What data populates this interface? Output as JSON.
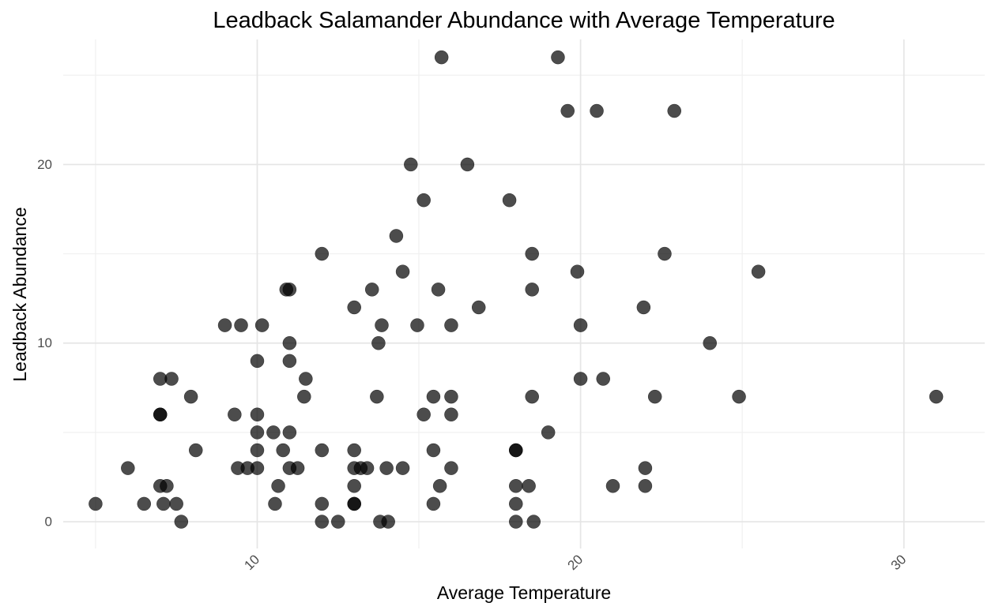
{
  "chart_data": {
    "type": "scatter",
    "title": "Leadback Salamander Abundance with Average Temperature",
    "xlabel": "Average Temperature",
    "ylabel": "Leadback Abundance",
    "xlim": [
      4,
      32.5
    ],
    "ylim": [
      -1.5,
      27
    ],
    "x_ticks": [
      10,
      20,
      30
    ],
    "x_tick_labels": [
      "10",
      "20",
      "30"
    ],
    "x_minor_ticks": [
      5,
      15,
      25
    ],
    "y_ticks": [
      0,
      10,
      20
    ],
    "y_tick_labels": [
      "0",
      "10",
      "20"
    ],
    "y_minor_ticks": [
      5,
      15,
      25
    ],
    "grid": true,
    "legend": "none",
    "point_color": "#000000",
    "point_opacity": 0.7,
    "points": [
      {
        "x": 5.0,
        "y": 1
      },
      {
        "x": 6.0,
        "y": 3
      },
      {
        "x": 6.5,
        "y": 1
      },
      {
        "x": 7.0,
        "y": 6
      },
      {
        "x": 7.0,
        "y": 6
      },
      {
        "x": 7.0,
        "y": 8
      },
      {
        "x": 7.0,
        "y": 2
      },
      {
        "x": 7.1,
        "y": 1
      },
      {
        "x": 7.2,
        "y": 2
      },
      {
        "x": 7.35,
        "y": 8
      },
      {
        "x": 7.5,
        "y": 1
      },
      {
        "x": 7.65,
        "y": 0
      },
      {
        "x": 7.95,
        "y": 7
      },
      {
        "x": 8.1,
        "y": 4
      },
      {
        "x": 9.0,
        "y": 11
      },
      {
        "x": 9.3,
        "y": 6
      },
      {
        "x": 9.4,
        "y": 3
      },
      {
        "x": 9.5,
        "y": 11
      },
      {
        "x": 9.7,
        "y": 3
      },
      {
        "x": 10.0,
        "y": 9
      },
      {
        "x": 10.0,
        "y": 6
      },
      {
        "x": 10.0,
        "y": 5
      },
      {
        "x": 10.0,
        "y": 4
      },
      {
        "x": 10.0,
        "y": 3
      },
      {
        "x": 10.15,
        "y": 11
      },
      {
        "x": 10.5,
        "y": 5
      },
      {
        "x": 10.55,
        "y": 1
      },
      {
        "x": 10.65,
        "y": 2
      },
      {
        "x": 10.8,
        "y": 4
      },
      {
        "x": 10.9,
        "y": 13
      },
      {
        "x": 11.0,
        "y": 13
      },
      {
        "x": 11.0,
        "y": 10
      },
      {
        "x": 11.0,
        "y": 9
      },
      {
        "x": 11.0,
        "y": 5
      },
      {
        "x": 11.0,
        "y": 3
      },
      {
        "x": 11.25,
        "y": 3
      },
      {
        "x": 11.45,
        "y": 7
      },
      {
        "x": 11.5,
        "y": 8
      },
      {
        "x": 12.0,
        "y": 15
      },
      {
        "x": 12.0,
        "y": 4
      },
      {
        "x": 12.0,
        "y": 1
      },
      {
        "x": 12.0,
        "y": 0
      },
      {
        "x": 12.5,
        "y": 0
      },
      {
        "x": 13.0,
        "y": 12
      },
      {
        "x": 13.0,
        "y": 4
      },
      {
        "x": 13.0,
        "y": 3
      },
      {
        "x": 13.0,
        "y": 2
      },
      {
        "x": 13.0,
        "y": 1
      },
      {
        "x": 13.0,
        "y": 1
      },
      {
        "x": 13.2,
        "y": 3
      },
      {
        "x": 13.4,
        "y": 3
      },
      {
        "x": 13.55,
        "y": 13
      },
      {
        "x": 13.7,
        "y": 7
      },
      {
        "x": 13.75,
        "y": 10
      },
      {
        "x": 13.8,
        "y": 0
      },
      {
        "x": 13.85,
        "y": 11
      },
      {
        "x": 14.0,
        "y": 3
      },
      {
        "x": 14.05,
        "y": 0
      },
      {
        "x": 14.3,
        "y": 16
      },
      {
        "x": 14.5,
        "y": 14
      },
      {
        "x": 14.5,
        "y": 3
      },
      {
        "x": 14.75,
        "y": 20
      },
      {
        "x": 14.95,
        "y": 11
      },
      {
        "x": 15.15,
        "y": 18
      },
      {
        "x": 15.15,
        "y": 6
      },
      {
        "x": 15.45,
        "y": 7
      },
      {
        "x": 15.45,
        "y": 4
      },
      {
        "x": 15.45,
        "y": 1
      },
      {
        "x": 15.6,
        "y": 13
      },
      {
        "x": 15.65,
        "y": 2
      },
      {
        "x": 15.7,
        "y": 26
      },
      {
        "x": 16.0,
        "y": 11
      },
      {
        "x": 16.0,
        "y": 7
      },
      {
        "x": 16.0,
        "y": 6
      },
      {
        "x": 16.0,
        "y": 3
      },
      {
        "x": 16.5,
        "y": 20
      },
      {
        "x": 16.85,
        "y": 12
      },
      {
        "x": 17.8,
        "y": 18
      },
      {
        "x": 18.0,
        "y": 4
      },
      {
        "x": 18.0,
        "y": 4
      },
      {
        "x": 18.0,
        "y": 2
      },
      {
        "x": 18.0,
        "y": 1
      },
      {
        "x": 18.0,
        "y": 0
      },
      {
        "x": 18.4,
        "y": 2
      },
      {
        "x": 18.5,
        "y": 15
      },
      {
        "x": 18.5,
        "y": 13
      },
      {
        "x": 18.5,
        "y": 7
      },
      {
        "x": 18.55,
        "y": 0
      },
      {
        "x": 19.0,
        "y": 5
      },
      {
        "x": 19.3,
        "y": 26
      },
      {
        "x": 19.6,
        "y": 23
      },
      {
        "x": 19.9,
        "y": 14
      },
      {
        "x": 20.0,
        "y": 11
      },
      {
        "x": 20.0,
        "y": 8
      },
      {
        "x": 20.5,
        "y": 23
      },
      {
        "x": 20.7,
        "y": 8
      },
      {
        "x": 21.0,
        "y": 2
      },
      {
        "x": 21.95,
        "y": 12
      },
      {
        "x": 22.0,
        "y": 3
      },
      {
        "x": 22.0,
        "y": 2
      },
      {
        "x": 22.3,
        "y": 7
      },
      {
        "x": 22.6,
        "y": 15
      },
      {
        "x": 22.9,
        "y": 23
      },
      {
        "x": 24.0,
        "y": 10
      },
      {
        "x": 24.9,
        "y": 7
      },
      {
        "x": 25.5,
        "y": 14
      },
      {
        "x": 31.0,
        "y": 7
      }
    ]
  }
}
